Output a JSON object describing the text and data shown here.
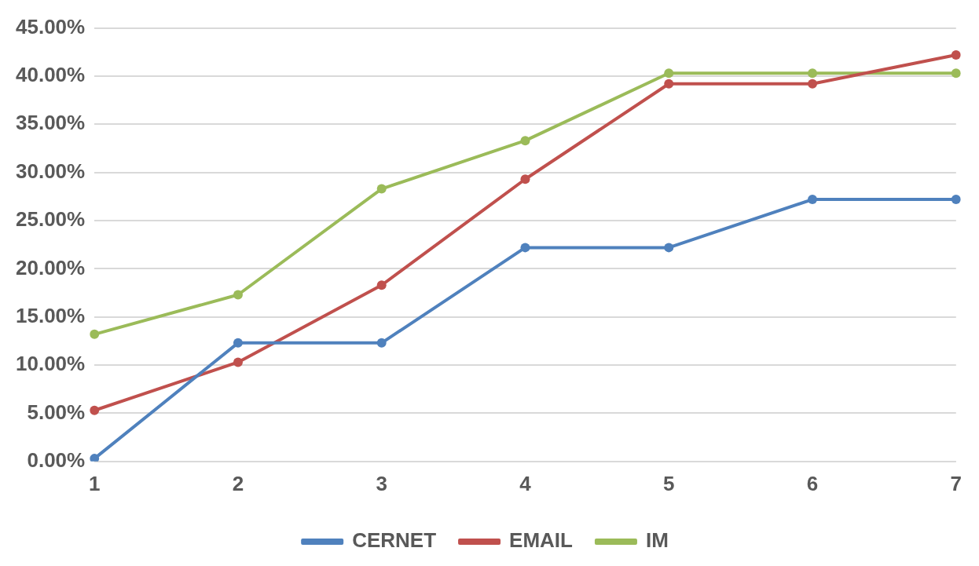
{
  "chart_data": {
    "type": "line",
    "categories": [
      "1",
      "2",
      "3",
      "4",
      "5",
      "6",
      "7"
    ],
    "series": [
      {
        "name": "CERNET",
        "color": "#4f81bd",
        "values": [
          0.3,
          12.3,
          12.3,
          22.2,
          22.2,
          27.2,
          27.2
        ]
      },
      {
        "name": "EMAIL",
        "color": "#c0504d",
        "values": [
          5.3,
          10.3,
          18.3,
          29.3,
          39.2,
          39.2,
          42.2
        ]
      },
      {
        "name": "IM",
        "color": "#9bbb59",
        "values": [
          13.2,
          17.3,
          28.3,
          33.3,
          40.3,
          40.3,
          40.3
        ]
      }
    ],
    "ylim": [
      0,
      45
    ],
    "yticks": [
      {
        "value": 0,
        "label": "0.00%"
      },
      {
        "value": 5,
        "label": "5.00%"
      },
      {
        "value": 10,
        "label": "10.00%"
      },
      {
        "value": 15,
        "label": "15.00%"
      },
      {
        "value": 20,
        "label": "20.00%"
      },
      {
        "value": 25,
        "label": "25.00%"
      },
      {
        "value": 30,
        "label": "30.00%"
      },
      {
        "value": 35,
        "label": "35.00%"
      },
      {
        "value": 40,
        "label": "40.00%"
      },
      {
        "value": 45,
        "label": "45.00%"
      }
    ],
    "grid": "y",
    "legend": "bottom",
    "marker": "circle",
    "line_style": "solid"
  }
}
